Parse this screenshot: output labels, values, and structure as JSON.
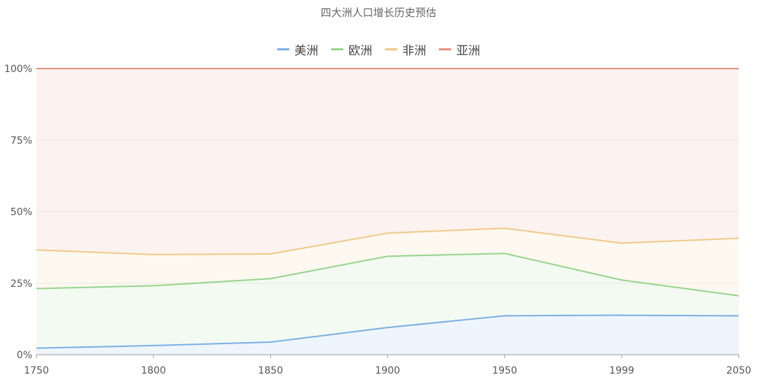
{
  "chart_data": {
    "type": "area",
    "stacked": true,
    "normalized": true,
    "title": "四大洲人口增长历史预估",
    "x": [
      "1750",
      "1800",
      "1850",
      "1900",
      "1950",
      "1999",
      "2050"
    ],
    "yTicks": [
      "0%",
      "25%",
      "50%",
      "75%",
      "100%"
    ],
    "ylim": [
      0,
      100
    ],
    "legend_position": "top-center",
    "grid": true,
    "series": [
      {
        "name": "美洲",
        "color": "#7aaee6",
        "values": [
          2.3,
          3.2,
          4.4,
          9.5,
          13.6,
          13.8,
          13.6
        ]
      },
      {
        "name": "欧洲",
        "color": "#95d48a",
        "values": [
          20.8,
          20.9,
          22.2,
          24.9,
          21.8,
          12.3,
          7.0
        ]
      },
      {
        "name": "非洲",
        "color": "#f0c987",
        "values": [
          13.5,
          10.9,
          8.6,
          8.1,
          8.8,
          12.9,
          20.1
        ]
      },
      {
        "name": "亚洲",
        "color": "#e5907c",
        "values": [
          63.4,
          65.0,
          64.8,
          57.5,
          55.8,
          61.0,
          59.3
        ]
      }
    ]
  }
}
